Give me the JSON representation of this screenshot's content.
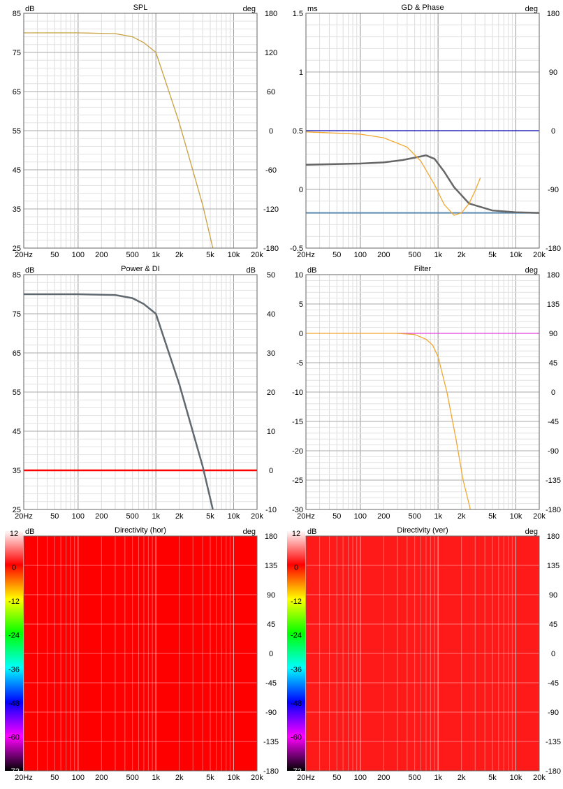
{
  "x_ticks": [
    "20Hz",
    "50",
    "100",
    "200",
    "500",
    "1k",
    "2k",
    "5k",
    "10k",
    "20k"
  ],
  "colormap": {
    "labels": [
      "12",
      "0",
      "-12",
      "-24",
      "-36",
      "-48",
      "-60",
      "-72"
    ],
    "stops": [
      "#ffffff",
      "#ff0000",
      "#ffff00",
      "#00ff00",
      "#00ffff",
      "#0000ff",
      "#ff00ff",
      "#000000"
    ]
  },
  "panels": [
    {
      "title": "SPL",
      "left_unit": "dB",
      "right_unit": "deg",
      "left_ticks": [
        "85",
        "75",
        "65",
        "55",
        "45",
        "35",
        "25"
      ],
      "right_ticks": [
        "180",
        "120",
        "60",
        "0",
        "-60",
        "-120",
        "-180"
      ],
      "chart_data": {
        "type": "line",
        "x_scale": "log",
        "xlim": [
          20,
          20000
        ],
        "ylim": [
          25,
          85
        ],
        "series": [
          {
            "color": "#c8a040",
            "x": [
              20,
              100,
              300,
              500,
              700,
              1000,
              2000,
              4000,
              5400
            ],
            "y": [
              80,
              80,
              79.8,
              79,
              77.5,
              75,
              57,
              36,
              25
            ]
          }
        ]
      }
    },
    {
      "title": "GD & Phase",
      "left_unit": "ms",
      "right_unit": "deg",
      "left_ticks": [
        "1.5",
        "1",
        "0.5",
        "0",
        "-0.5"
      ],
      "right_ticks": [
        "180",
        "90",
        "0",
        "-90",
        "-180"
      ],
      "chart_data": {
        "type": "line",
        "x_scale": "log",
        "xlim": [
          20,
          20000
        ],
        "ylim": [
          -0.5,
          1.5
        ],
        "series": [
          {
            "color": "#0000b0",
            "x": [
              20,
              20000
            ],
            "y": [
              0.5,
              0.5
            ]
          },
          {
            "color": "#5a8ab0",
            "x": [
              20,
              20000
            ],
            "y": [
              -0.2,
              -0.2
            ]
          },
          {
            "color": "#666666",
            "x": [
              20,
              100,
              200,
              350,
              500,
              700,
              900,
              1200,
              1600,
              2500,
              5000,
              10000,
              20000
            ],
            "y": [
              0.21,
              0.22,
              0.23,
              0.25,
              0.27,
              0.29,
              0.26,
              0.15,
              0.02,
              -0.12,
              -0.18,
              -0.195,
              -0.2
            ]
          },
          {
            "color": "#f0a830",
            "x": [
              20,
              100,
              200,
              400,
              600,
              900,
              1200,
              1600,
              2000,
              2500,
              3000,
              3500
            ],
            "y": [
              0.49,
              0.47,
              0.44,
              0.36,
              0.24,
              0.04,
              -0.13,
              -0.22,
              -0.2,
              -0.12,
              -0.01,
              0.1
            ]
          }
        ]
      }
    },
    {
      "title": "Power & DI",
      "left_unit": "dB",
      "right_unit": "dB",
      "left_ticks": [
        "85",
        "75",
        "65",
        "55",
        "45",
        "35",
        "25"
      ],
      "right_ticks": [
        "50",
        "40",
        "30",
        "20",
        "10",
        "0",
        "-10"
      ],
      "chart_data": {
        "type": "line",
        "x_scale": "log",
        "xlim": [
          20,
          20000
        ],
        "ylim": [
          25,
          85
        ],
        "series": [
          {
            "color": "#ff0000",
            "x": [
              20,
              20000
            ],
            "y": [
              35,
              35
            ]
          },
          {
            "color": "#606870",
            "x": [
              20,
              100,
              300,
              500,
              700,
              1000,
              2000,
              4000,
              5400
            ],
            "y": [
              80,
              80,
              79.8,
              79,
              77.5,
              75,
              57,
              36,
              25
            ]
          }
        ]
      }
    },
    {
      "title": "Filter",
      "left_unit": "dB",
      "right_unit": "deg",
      "left_ticks": [
        "10",
        "5",
        "0",
        "-5",
        "-10",
        "-15",
        "-20",
        "-25",
        "-30"
      ],
      "right_ticks": [
        "180",
        "135",
        "90",
        "45",
        "0",
        "-45",
        "-90",
        "-135",
        "-180"
      ],
      "chart_data": {
        "type": "line",
        "x_scale": "log",
        "xlim": [
          20,
          20000
        ],
        "ylim": [
          -30,
          10
        ],
        "series": [
          {
            "color": "#e040e0",
            "x": [
              300,
              20000
            ],
            "y": [
              0,
              0
            ]
          },
          {
            "color": "#f0a830",
            "x": [
              20,
              300,
              500,
              700,
              850,
              1000,
              1300,
              1700,
              2100,
              2600
            ],
            "y": [
              0,
              0,
              -0.2,
              -1,
              -2,
              -4,
              -10,
              -18,
              -25,
              -30
            ]
          }
        ]
      }
    },
    {
      "title": "Directivity (hor)",
      "left_unit": "dB",
      "right_unit": "deg",
      "right_ticks": [
        "180",
        "135",
        "90",
        "45",
        "0",
        "-45",
        "-90",
        "-135",
        "-180"
      ],
      "chart_data": {
        "type": "heatmap",
        "xlim": [
          20,
          20000
        ],
        "ylim": [
          -180,
          180
        ],
        "fill": "#ff0000"
      }
    },
    {
      "title": "Directivity (ver)",
      "left_unit": "dB",
      "right_unit": "deg",
      "right_ticks": [
        "180",
        "135",
        "90",
        "45",
        "0",
        "-45",
        "-90",
        "-135",
        "-180"
      ],
      "chart_data": {
        "type": "heatmap",
        "xlim": [
          20,
          20000
        ],
        "ylim": [
          -180,
          180
        ],
        "fill": "#ff1a1a"
      }
    }
  ]
}
